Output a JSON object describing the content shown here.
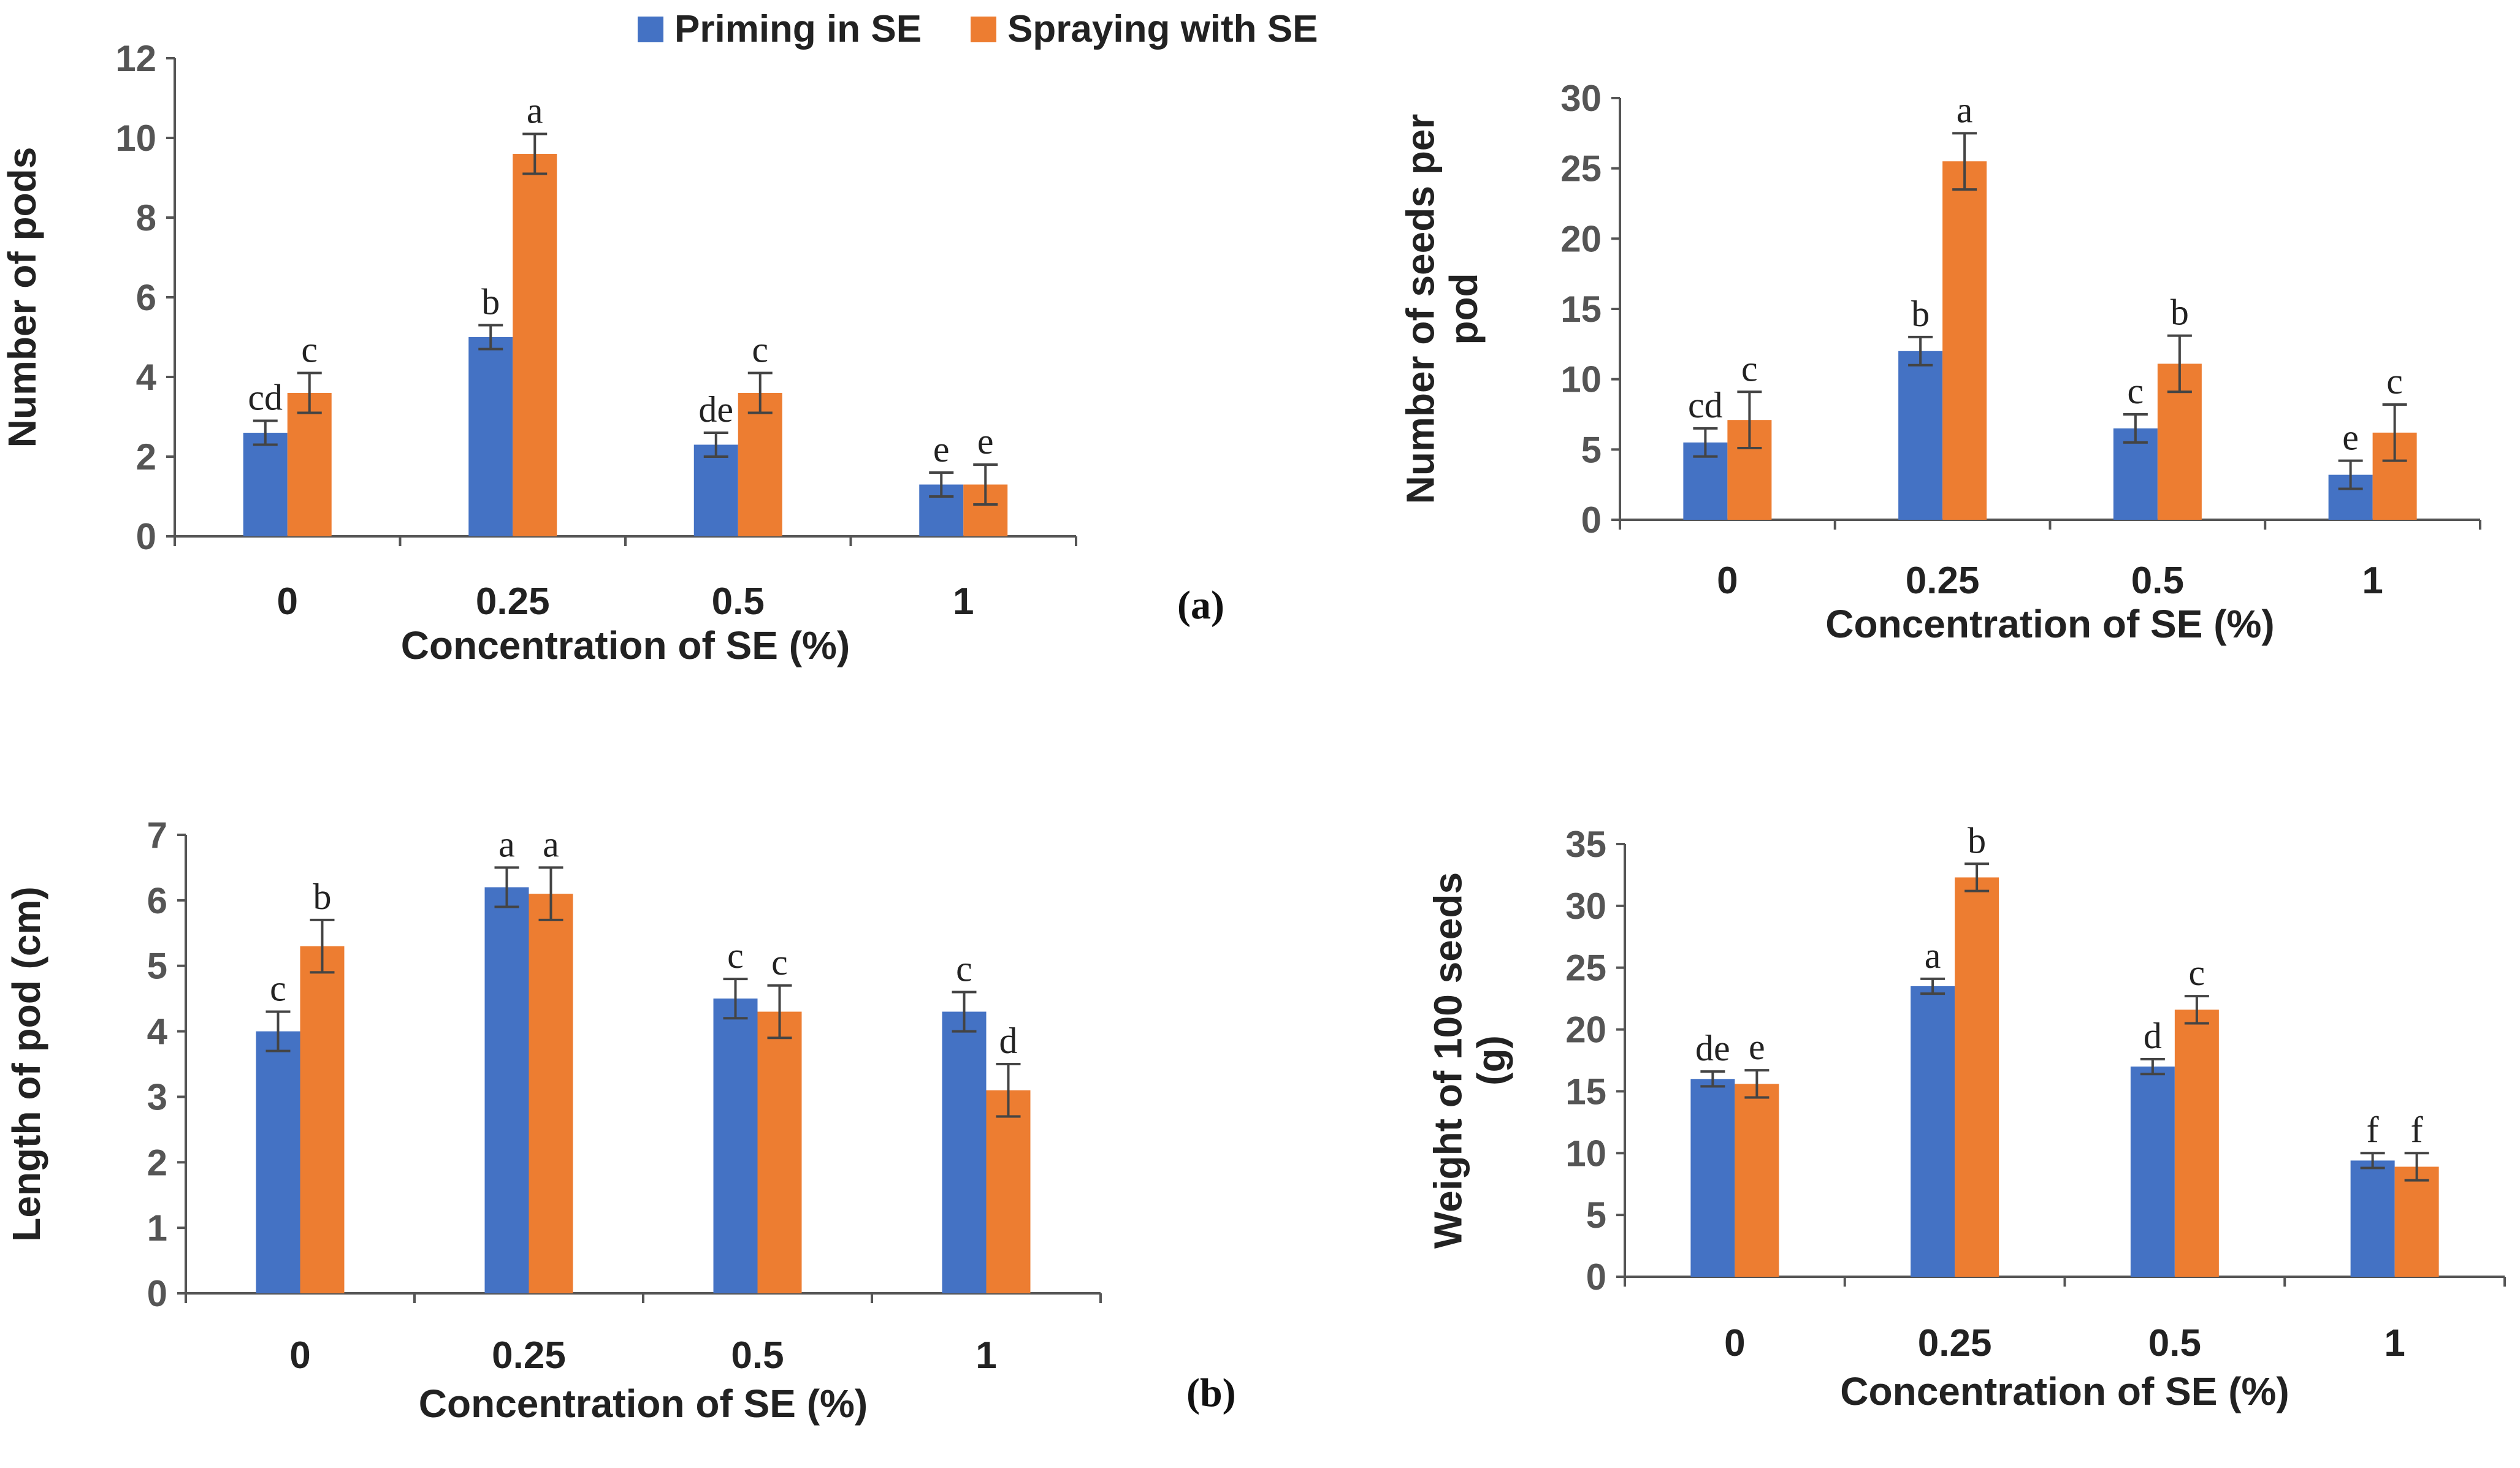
{
  "legend": [
    {
      "name": "Priming in SE",
      "color": "#4472C4"
    },
    {
      "name": "Spraying with SE",
      "color": "#ED7D31"
    }
  ],
  "panel_labels": {
    "a": "(a)",
    "b": "(b)"
  },
  "chart_data": [
    {
      "type": "bar",
      "id": "pods",
      "categories": [
        "0",
        "0.25",
        "0.5",
        "1"
      ],
      "series": [
        {
          "name": "Priming in SE",
          "values": [
            2.6,
            5.0,
            2.3,
            1.3
          ],
          "errors": [
            0.3,
            0.3,
            0.3,
            0.3
          ],
          "letters": [
            "cd",
            "b",
            "de",
            "e"
          ]
        },
        {
          "name": "Spraying with SE",
          "values": [
            3.6,
            9.6,
            3.6,
            1.3
          ],
          "errors": [
            0.5,
            0.5,
            0.5,
            0.5
          ],
          "letters": [
            "c",
            "a",
            "c",
            "e"
          ]
        }
      ],
      "xlabel": "Concentration of SE (%)",
      "ylabel": "Number of pods",
      "ylim": [
        0,
        12
      ],
      "yticks": [
        0,
        2,
        4,
        6,
        8,
        10,
        12
      ]
    },
    {
      "type": "bar",
      "id": "seeds_per_pod",
      "categories": [
        "0",
        "0.25",
        "0.5",
        "1"
      ],
      "series": [
        {
          "name": "Priming in SE",
          "values": [
            5.5,
            12.0,
            6.5,
            3.2
          ],
          "errors": [
            1.0,
            1.0,
            1.0,
            1.0
          ],
          "letters": [
            "cd",
            "b",
            "c",
            "e"
          ]
        },
        {
          "name": "Spraying with SE",
          "values": [
            7.1,
            25.5,
            11.1,
            6.2
          ],
          "errors": [
            2.0,
            2.0,
            2.0,
            2.0
          ],
          "letters": [
            "c",
            "a",
            "b",
            "c"
          ]
        }
      ],
      "xlabel": "Concentration of SE (%)",
      "ylabel": "Number of seeds per pod",
      "ylim": [
        0,
        30
      ],
      "yticks": [
        0,
        5,
        10,
        15,
        20,
        25,
        30
      ]
    },
    {
      "type": "bar",
      "id": "pod_length",
      "categories": [
        "0",
        "0.25",
        "0.5",
        "1"
      ],
      "series": [
        {
          "name": "Priming in SE",
          "values": [
            4.0,
            6.2,
            4.5,
            4.3
          ],
          "errors": [
            0.3,
            0.3,
            0.3,
            0.3
          ],
          "letters": [
            "c",
            "a",
            "c",
            "c"
          ]
        },
        {
          "name": "Spraying with SE",
          "values": [
            5.3,
            6.1,
            4.3,
            3.1
          ],
          "errors": [
            0.4,
            0.4,
            0.4,
            0.4
          ],
          "letters": [
            "b",
            "a",
            "c",
            "d"
          ]
        }
      ],
      "xlabel": "Concentration of SE (%)",
      "ylabel": "Length of pod (cm)",
      "ylim": [
        0,
        7
      ],
      "yticks": [
        0,
        1,
        2,
        3,
        4,
        5,
        6,
        7
      ]
    },
    {
      "type": "bar",
      "id": "seed_weight",
      "categories": [
        "0",
        "0.25",
        "0.5",
        "1"
      ],
      "series": [
        {
          "name": "Priming in SE",
          "values": [
            16.0,
            23.5,
            17.0,
            9.4
          ],
          "errors": [
            0.6,
            0.6,
            0.6,
            0.6
          ],
          "letters": [
            "de",
            "a",
            "d",
            "f"
          ]
        },
        {
          "name": "Spraying with SE",
          "values": [
            15.6,
            32.3,
            21.6,
            8.9
          ],
          "errors": [
            1.1,
            1.1,
            1.1,
            1.1
          ],
          "letters": [
            "e",
            "b",
            "c",
            "f"
          ]
        }
      ],
      "xlabel": "Concentration of SE (%)",
      "ylabel": "Weight of 100 seeds (g)",
      "ylim": [
        0,
        35
      ],
      "yticks": [
        0,
        5,
        10,
        15,
        20,
        25,
        30,
        35
      ]
    }
  ]
}
